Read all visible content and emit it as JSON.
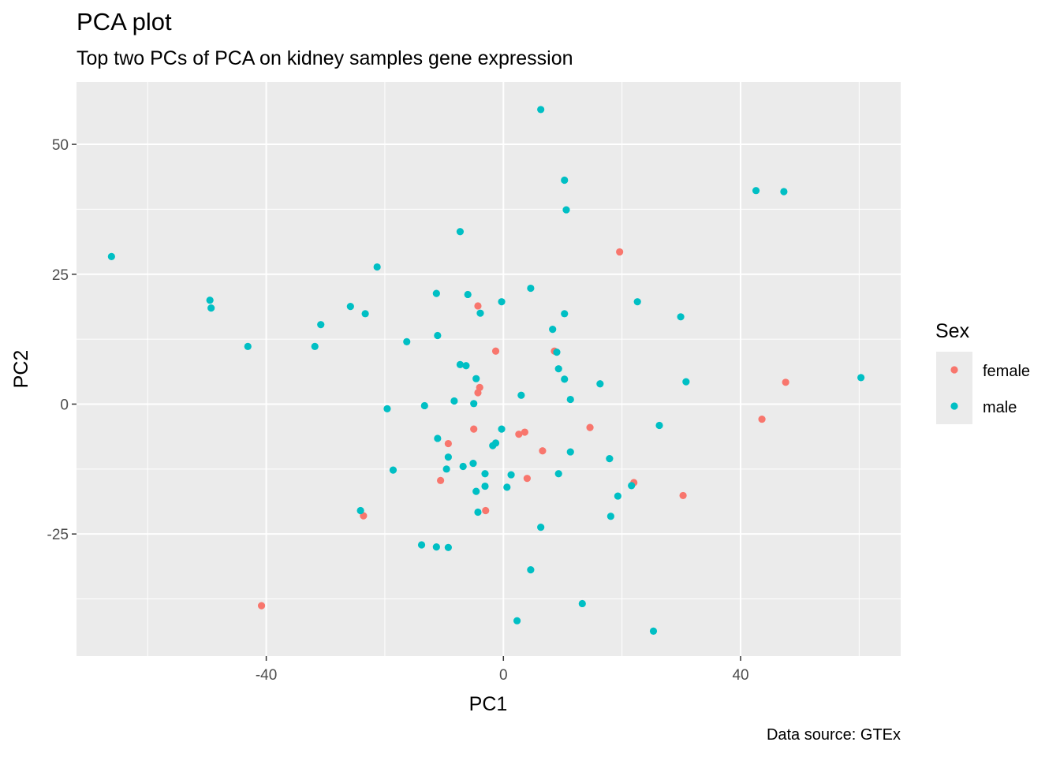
{
  "chart_data": {
    "type": "scatter",
    "title": "PCA plot",
    "subtitle": "Top two PCs of PCA on kidney samples gene expression",
    "caption": "Data source: GTEx",
    "xlabel": "PC1",
    "ylabel": "PC2",
    "xlim": [
      -72,
      67
    ],
    "ylim": [
      -48.5,
      62
    ],
    "x_ticks": [
      -40,
      0,
      40
    ],
    "y_ticks": [
      -25,
      0,
      25,
      50
    ],
    "x_tick_labels": [
      "-40",
      "0",
      "40"
    ],
    "y_tick_labels": [
      "-25",
      "0",
      "25",
      "50"
    ],
    "grid": true,
    "legend": {
      "title": "Sex",
      "position": "right"
    },
    "series": [
      {
        "name": "female",
        "color": "#F8766D",
        "points": [
          [
            19.6,
            29.3
          ],
          [
            -4.3,
            18.9
          ],
          [
            -1.3,
            10.2
          ],
          [
            8.6,
            10.2
          ],
          [
            -4.3,
            2.2
          ],
          [
            -4,
            3.2
          ],
          [
            -5,
            -4.8
          ],
          [
            -9.3,
            -7.6
          ],
          [
            2.6,
            -5.8
          ],
          [
            3.6,
            -5.4
          ],
          [
            14.6,
            -4.5
          ],
          [
            6.6,
            -9
          ],
          [
            -10.6,
            -14.7
          ],
          [
            4,
            -14.3
          ],
          [
            22,
            -15.1
          ],
          [
            30.3,
            -17.6
          ],
          [
            -3,
            -20.5
          ],
          [
            -23.6,
            -21.5
          ],
          [
            47.6,
            4.2
          ],
          [
            43.6,
            -2.9
          ],
          [
            -40.8,
            -38.8
          ]
        ]
      },
      {
        "name": "male",
        "color": "#00BFC4",
        "points": [
          [
            6.3,
            56.7
          ],
          [
            10.3,
            43.1
          ],
          [
            10.6,
            37.4
          ],
          [
            42.6,
            41.1
          ],
          [
            47.3,
            40.9
          ],
          [
            -7.3,
            33.2
          ],
          [
            -66.1,
            28.4
          ],
          [
            -21.3,
            26.4
          ],
          [
            4.6,
            22.3
          ],
          [
            -6,
            21.1
          ],
          [
            -11.3,
            21.3
          ],
          [
            -0.3,
            19.7
          ],
          [
            22.6,
            19.7
          ],
          [
            -49.5,
            20
          ],
          [
            -49.3,
            18.5
          ],
          [
            -25.8,
            18.8
          ],
          [
            -23.3,
            17.4
          ],
          [
            -3.9,
            17.5
          ],
          [
            10.3,
            17.4
          ],
          [
            29.9,
            16.8
          ],
          [
            -30.8,
            15.3
          ],
          [
            8.3,
            14.4
          ],
          [
            -11.1,
            13.2
          ],
          [
            -16.3,
            12
          ],
          [
            -43.1,
            11.1
          ],
          [
            -31.8,
            11.1
          ],
          [
            9,
            10
          ],
          [
            -7.3,
            7.6
          ],
          [
            -6.3,
            7.4
          ],
          [
            9.3,
            6.8
          ],
          [
            -4.6,
            4.9
          ],
          [
            10.3,
            4.8
          ],
          [
            30.8,
            4.3
          ],
          [
            16.3,
            3.9
          ],
          [
            3,
            1.7
          ],
          [
            11.3,
            0.9
          ],
          [
            -8.3,
            0.6
          ],
          [
            -5,
            0.1
          ],
          [
            -13.3,
            -0.3
          ],
          [
            -19.6,
            -0.9
          ],
          [
            26.3,
            -4.1
          ],
          [
            -0.3,
            -4.8
          ],
          [
            -11.1,
            -6.6
          ],
          [
            -1.3,
            -7.5
          ],
          [
            -1.8,
            -8
          ],
          [
            11.3,
            -9.2
          ],
          [
            -9.3,
            -10.2
          ],
          [
            17.9,
            -10.5
          ],
          [
            -6.8,
            -12
          ],
          [
            -5.1,
            -11.4
          ],
          [
            -9.6,
            -12.5
          ],
          [
            -18.6,
            -12.7
          ],
          [
            -3.1,
            -13.4
          ],
          [
            1.3,
            -13.6
          ],
          [
            9.3,
            -13.4
          ],
          [
            -3.1,
            -15.8
          ],
          [
            0.6,
            -16
          ],
          [
            -4.6,
            -16.8
          ],
          [
            21.6,
            -15.7
          ],
          [
            19.3,
            -17.7
          ],
          [
            -24.1,
            -20.5
          ],
          [
            -4.3,
            -20.8
          ],
          [
            18.1,
            -21.6
          ],
          [
            6.3,
            -23.7
          ],
          [
            -13.8,
            -27.1
          ],
          [
            -11.3,
            -27.5
          ],
          [
            -9.3,
            -27.6
          ],
          [
            4.6,
            -31.9
          ],
          [
            13.3,
            -38.4
          ],
          [
            2.3,
            -41.7
          ],
          [
            25.3,
            -43.7
          ],
          [
            60.3,
            5.1
          ]
        ]
      }
    ]
  }
}
